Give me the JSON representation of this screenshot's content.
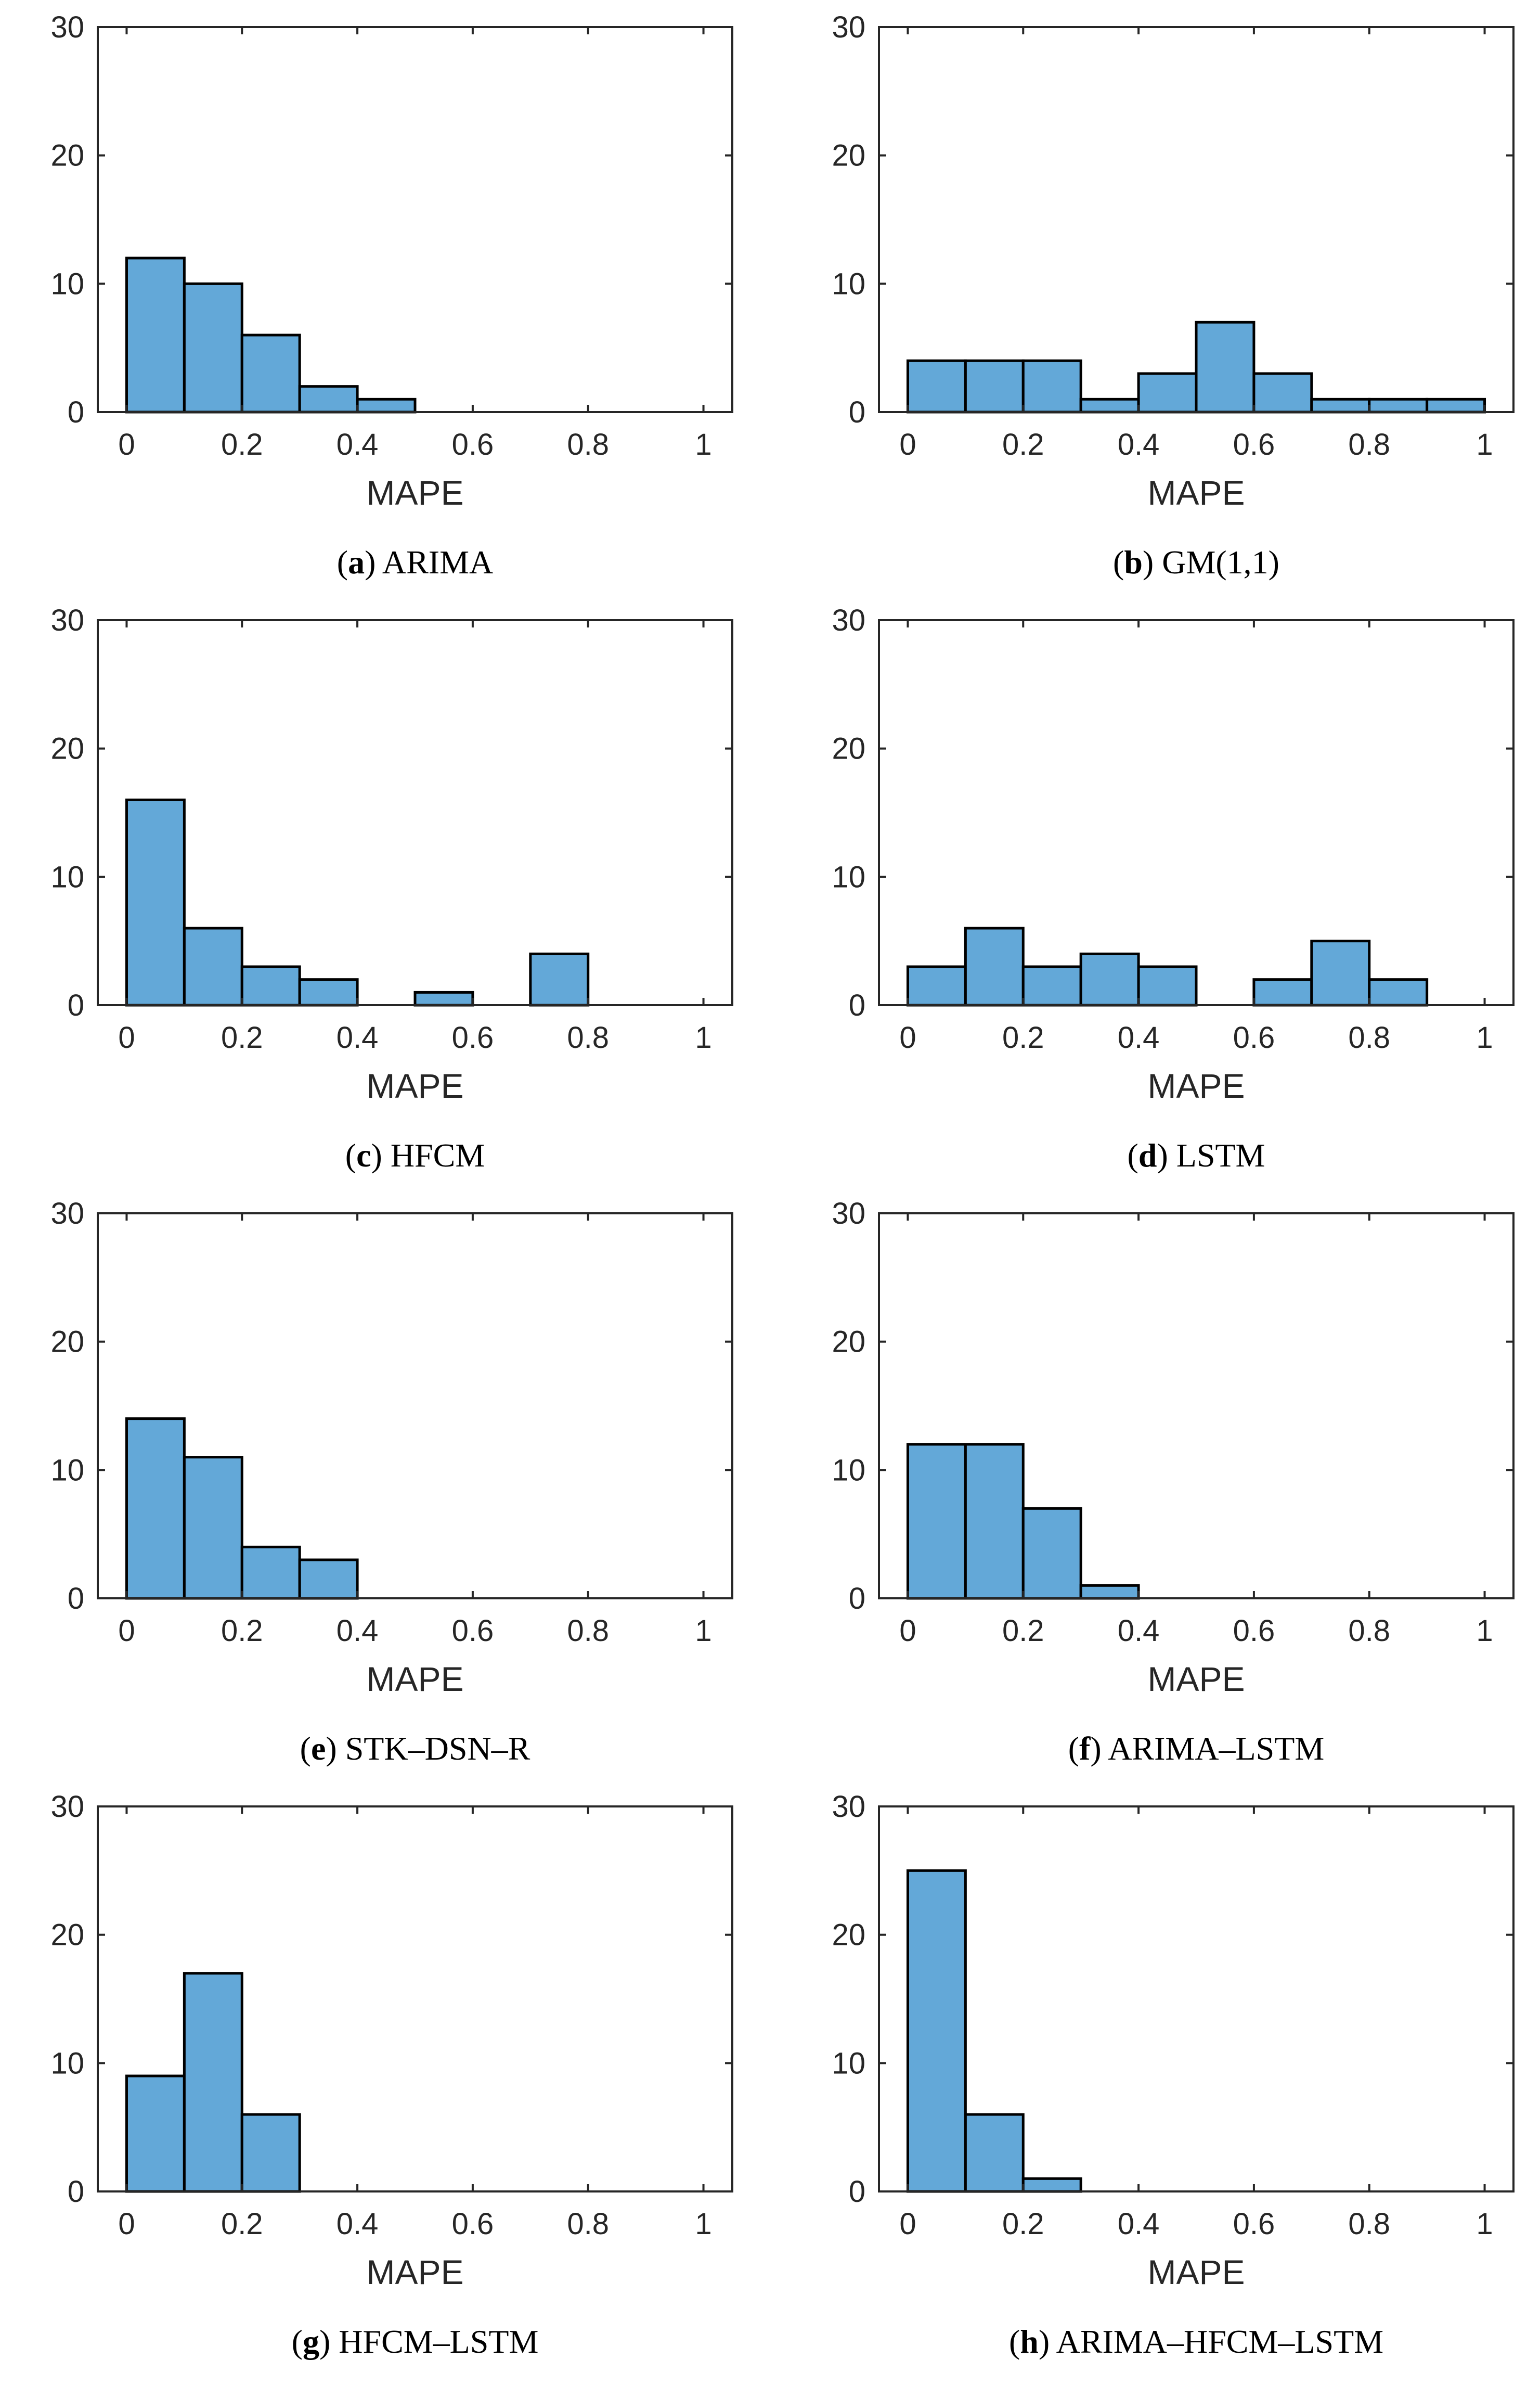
{
  "figure": {
    "layout": "4 rows x 2 columns of histograms"
  },
  "chart_data": [
    {
      "type": "bar",
      "panel": "a",
      "caption_letter": "a",
      "caption_text": "ARIMA",
      "xlabel": "MAPE",
      "ylabel": "",
      "bin_edges": [
        0,
        0.1,
        0.2,
        0.3,
        0.4,
        0.5,
        0.6,
        0.7,
        0.8,
        0.9,
        1.0
      ],
      "values": [
        12,
        10,
        6,
        2,
        1,
        0,
        0,
        0,
        0,
        0
      ],
      "xlim": [
        -0.05,
        1.05
      ],
      "ylim": [
        0,
        30
      ],
      "xticks": [
        "0",
        "0.2",
        "0.4",
        "0.6",
        "0.8",
        "1"
      ],
      "yticks": [
        "0",
        "10",
        "20",
        "30"
      ]
    },
    {
      "type": "bar",
      "panel": "b",
      "caption_letter": "b",
      "caption_text": "GM(1,1)",
      "xlabel": "MAPE",
      "ylabel": "",
      "bin_edges": [
        0,
        0.1,
        0.2,
        0.3,
        0.4,
        0.5,
        0.6,
        0.7,
        0.8,
        0.9,
        1.0
      ],
      "values": [
        4,
        4,
        4,
        1,
        3,
        7,
        3,
        1,
        1,
        1
      ],
      "xlim": [
        -0.05,
        1.05
      ],
      "ylim": [
        0,
        30
      ],
      "xticks": [
        "0",
        "0.2",
        "0.4",
        "0.6",
        "0.8",
        "1"
      ],
      "yticks": [
        "0",
        "10",
        "20",
        "30"
      ]
    },
    {
      "type": "bar",
      "panel": "c",
      "caption_letter": "c",
      "caption_text": "HFCM",
      "xlabel": "MAPE",
      "ylabel": "",
      "bin_edges": [
        0,
        0.1,
        0.2,
        0.3,
        0.4,
        0.5,
        0.6,
        0.7,
        0.8,
        0.9,
        1.0
      ],
      "values": [
        16,
        6,
        3,
        2,
        0,
        1,
        0,
        4,
        0,
        0
      ],
      "xlim": [
        -0.05,
        1.05
      ],
      "ylim": [
        0,
        30
      ],
      "xticks": [
        "0",
        "0.2",
        "0.4",
        "0.6",
        "0.8",
        "1"
      ],
      "yticks": [
        "0",
        "10",
        "20",
        "30"
      ]
    },
    {
      "type": "bar",
      "panel": "d",
      "caption_letter": "d",
      "caption_text": "LSTM",
      "xlabel": "MAPE",
      "ylabel": "",
      "bin_edges": [
        0,
        0.1,
        0.2,
        0.3,
        0.4,
        0.5,
        0.6,
        0.7,
        0.8,
        0.9,
        1.0
      ],
      "values": [
        3,
        6,
        3,
        4,
        3,
        0,
        2,
        5,
        2,
        0
      ],
      "xlim": [
        -0.05,
        1.05
      ],
      "ylim": [
        0,
        30
      ],
      "xticks": [
        "0",
        "0.2",
        "0.4",
        "0.6",
        "0.8",
        "1"
      ],
      "yticks": [
        "0",
        "10",
        "20",
        "30"
      ]
    },
    {
      "type": "bar",
      "panel": "e",
      "caption_letter": "e",
      "caption_text": "STK–DSN–R",
      "xlabel": "MAPE",
      "ylabel": "",
      "bin_edges": [
        0,
        0.1,
        0.2,
        0.3,
        0.4,
        0.5,
        0.6,
        0.7,
        0.8,
        0.9,
        1.0
      ],
      "values": [
        14,
        11,
        4,
        3,
        0,
        0,
        0,
        0,
        0,
        0
      ],
      "xlim": [
        -0.05,
        1.05
      ],
      "ylim": [
        0,
        30
      ],
      "xticks": [
        "0",
        "0.2",
        "0.4",
        "0.6",
        "0.8",
        "1"
      ],
      "yticks": [
        "0",
        "10",
        "20",
        "30"
      ]
    },
    {
      "type": "bar",
      "panel": "f",
      "caption_letter": "f",
      "caption_text": "ARIMA–LSTM",
      "xlabel": "MAPE",
      "ylabel": "",
      "bin_edges": [
        0,
        0.1,
        0.2,
        0.3,
        0.4,
        0.5,
        0.6,
        0.7,
        0.8,
        0.9,
        1.0
      ],
      "values": [
        12,
        12,
        7,
        1,
        0,
        0,
        0,
        0,
        0,
        0
      ],
      "xlim": [
        -0.05,
        1.05
      ],
      "ylim": [
        0,
        30
      ],
      "xticks": [
        "0",
        "0.2",
        "0.4",
        "0.6",
        "0.8",
        "1"
      ],
      "yticks": [
        "0",
        "10",
        "20",
        "30"
      ]
    },
    {
      "type": "bar",
      "panel": "g",
      "caption_letter": "g",
      "caption_text": "HFCM–LSTM",
      "xlabel": "MAPE",
      "ylabel": "",
      "bin_edges": [
        0,
        0.1,
        0.2,
        0.3,
        0.4,
        0.5,
        0.6,
        0.7,
        0.8,
        0.9,
        1.0
      ],
      "values": [
        9,
        17,
        6,
        0,
        0,
        0,
        0,
        0,
        0,
        0
      ],
      "xlim": [
        -0.05,
        1.05
      ],
      "ylim": [
        0,
        30
      ],
      "xticks": [
        "0",
        "0.2",
        "0.4",
        "0.6",
        "0.8",
        "1"
      ],
      "yticks": [
        "0",
        "10",
        "20",
        "30"
      ]
    },
    {
      "type": "bar",
      "panel": "h",
      "caption_letter": "h",
      "caption_text": "ARIMA–HFCM–LSTM",
      "xlabel": "MAPE",
      "ylabel": "",
      "bin_edges": [
        0,
        0.1,
        0.2,
        0.3,
        0.4,
        0.5,
        0.6,
        0.7,
        0.8,
        0.9,
        1.0
      ],
      "values": [
        25,
        6,
        1,
        0,
        0,
        0,
        0,
        0,
        0,
        0
      ],
      "xlim": [
        -0.05,
        1.05
      ],
      "ylim": [
        0,
        30
      ],
      "xticks": [
        "0",
        "0.2",
        "0.4",
        "0.6",
        "0.8",
        "1"
      ],
      "yticks": [
        "0",
        "10",
        "20",
        "30"
      ]
    }
  ]
}
